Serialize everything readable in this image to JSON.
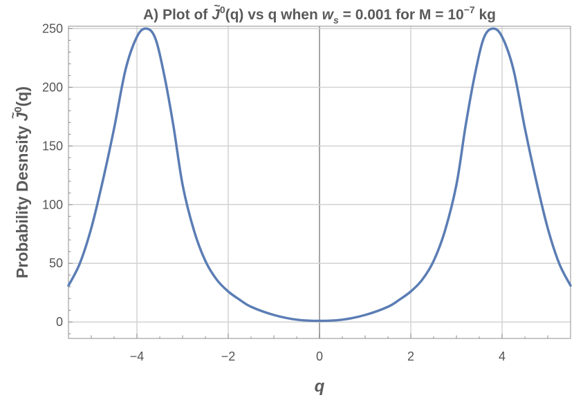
{
  "chart_data": {
    "type": "line",
    "title": {
      "prefix": "A) Plot of ",
      "symbol": "J",
      "symbol_accent": "~",
      "symbol_sup": "0",
      "middle": "(q) vs q when ",
      "param_symbol": "w",
      "param_sub": "s",
      "param_value": " = 0.001 for M = 10",
      "exponent": "−7",
      "unit": " kg"
    },
    "xlabel": "q",
    "ylabel": {
      "text": "Probability  Desnsity ",
      "symbol": "J",
      "symbol_accent": "~",
      "symbol_sup": "0",
      "suffix": "(q)"
    },
    "xlim": [
      -5.5,
      5.5
    ],
    "ylim": [
      -14,
      252
    ],
    "x_ticks": [
      -4,
      -2,
      0,
      2,
      4
    ],
    "x_tick_labels": [
      "−4",
      "−2",
      "0",
      "2",
      "4"
    ],
    "y_ticks": [
      0,
      50,
      100,
      150,
      200,
      250
    ],
    "y_tick_labels": [
      "0",
      "50",
      "100",
      "150",
      "200",
      "250"
    ],
    "grid": true,
    "series": [
      {
        "color": "#5b7db4",
        "x": [
          -5.5,
          -5.25,
          -5.0,
          -4.75,
          -4.5,
          -4.25,
          -4.0,
          -3.8,
          -3.6,
          -3.4,
          -3.2,
          -3.0,
          -2.75,
          -2.5,
          -2.25,
          -2.0,
          -1.75,
          -1.5,
          -1.0,
          -0.5,
          0.0,
          0.5,
          1.0,
          1.5,
          1.75,
          2.0,
          2.25,
          2.5,
          2.75,
          3.0,
          3.2,
          3.4,
          3.6,
          3.8,
          4.0,
          4.25,
          4.5,
          4.75,
          5.0,
          5.25,
          5.5
        ],
        "y": [
          31,
          50,
          80,
          120,
          165,
          215,
          243,
          250,
          242,
          210,
          167,
          117,
          78,
          52,
          36,
          26,
          19,
          13,
          6,
          2,
          1,
          2,
          6,
          13,
          19,
          26,
          36,
          52,
          78,
          117,
          167,
          210,
          242,
          250,
          243,
          215,
          165,
          120,
          80,
          50,
          31
        ]
      }
    ]
  }
}
